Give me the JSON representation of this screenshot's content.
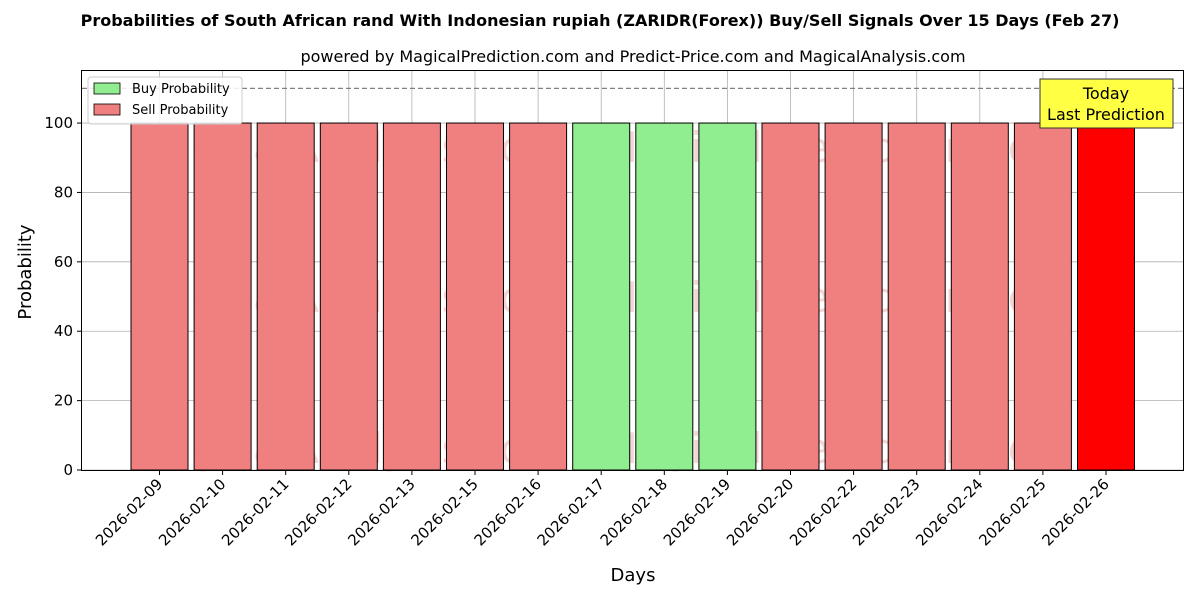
{
  "chart_data": {
    "type": "bar",
    "title": "Probabilities of South African rand With Indonesian rupiah (ZARIDR(Forex)) Buy/Sell Signals Over 15 Days (Feb 27)",
    "subtitle": "powered by MagicalPrediction.com and Predict-Price.com and MagicalAnalysis.com",
    "xlabel": "Days",
    "ylabel": "Probability",
    "ylim": [
      0,
      115
    ],
    "yticks": [
      0,
      20,
      40,
      60,
      80,
      100
    ],
    "reference_line": 110,
    "grid": true,
    "legend_position": "top-left",
    "categories": [
      "2026-02-09",
      "2026-02-10",
      "2026-02-11",
      "2026-02-12",
      "2026-02-13",
      "2026-02-15",
      "2026-02-16",
      "2026-02-17",
      "2026-02-18",
      "2026-02-19",
      "2026-02-20",
      "2026-02-22",
      "2026-02-23",
      "2026-02-24",
      "2026-02-25",
      "2026-02-26"
    ],
    "series": [
      {
        "name": "Buy Probability",
        "color": "#90ee90",
        "values": [
          0,
          0,
          0,
          0,
          0,
          0,
          0,
          100,
          100,
          100,
          0,
          0,
          0,
          0,
          0,
          0
        ]
      },
      {
        "name": "Sell Probability",
        "color": "#f08080",
        "values": [
          100,
          100,
          100,
          100,
          100,
          100,
          100,
          0,
          0,
          0,
          100,
          100,
          100,
          100,
          100,
          100
        ]
      }
    ],
    "highlight": {
      "index": 15,
      "color": "#ff0000"
    },
    "annotation": {
      "line1": "Today",
      "line2": "Last Prediction",
      "color": "#ffff44"
    },
    "watermarks": [
      "MagicalAnalysis.com",
      "MagicalPrediction.com"
    ]
  }
}
